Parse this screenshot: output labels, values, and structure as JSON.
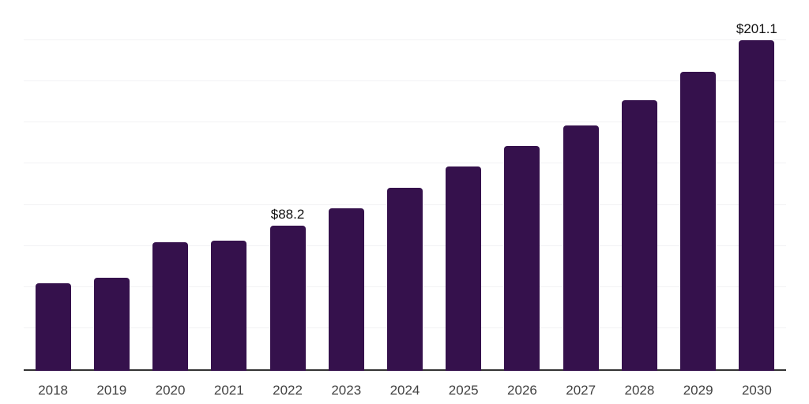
{
  "chart_data": {
    "type": "bar",
    "title": "",
    "xlabel": "",
    "ylabel": "",
    "categories": [
      "2018",
      "2019",
      "2020",
      "2021",
      "2022",
      "2023",
      "2024",
      "2025",
      "2026",
      "2027",
      "2028",
      "2029",
      "2030"
    ],
    "values": [
      53.1,
      56.6,
      78.1,
      79.1,
      88.2,
      99.0,
      111.5,
      124.2,
      136.6,
      149.1,
      164.4,
      181.7,
      201.1
    ],
    "value_labels": [
      "",
      "",
      "",
      "",
      "$88.2",
      "",
      "",
      "",
      "",
      "",
      "",
      "",
      "$201.1"
    ],
    "ylim": [
      0,
      225
    ],
    "grid_step": 25,
    "grid": "horizontal",
    "y_tick_labels_visible": false,
    "legend": "none",
    "colors": {
      "bar": "#35114c",
      "axis_line": "#333333",
      "gridline": "#f2f2f4",
      "tick_label": "#424242",
      "value_label": "#111111",
      "background": "#ffffff"
    }
  }
}
